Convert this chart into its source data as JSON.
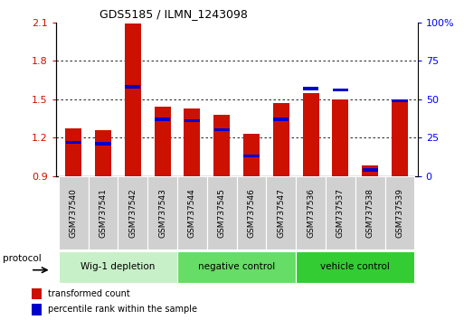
{
  "title": "GDS5185 / ILMN_1243098",
  "samples": [
    "GSM737540",
    "GSM737541",
    "GSM737542",
    "GSM737543",
    "GSM737544",
    "GSM737545",
    "GSM737546",
    "GSM737547",
    "GSM737536",
    "GSM737537",
    "GSM737538",
    "GSM737539"
  ],
  "red_values": [
    1.27,
    1.26,
    2.09,
    1.44,
    1.43,
    1.38,
    1.23,
    1.47,
    1.55,
    1.5,
    0.98,
    1.48
  ],
  "blue_pct": [
    22,
    21,
    58,
    37,
    36,
    30,
    13,
    37,
    57,
    56,
    4,
    49
  ],
  "ylim_left": [
    0.9,
    2.1
  ],
  "ylim_right": [
    0,
    100
  ],
  "yticks_left": [
    0.9,
    1.2,
    1.5,
    1.8,
    2.1
  ],
  "yticks_right": [
    0,
    25,
    50,
    75,
    100
  ],
  "ytick_labels_right": [
    "0",
    "25",
    "50",
    "75",
    "100%"
  ],
  "groups": [
    {
      "label": "Wig-1 depletion",
      "indices": [
        0,
        1,
        2,
        3
      ],
      "color": "#c8f0c8"
    },
    {
      "label": "negative control",
      "indices": [
        4,
        5,
        6,
        7
      ],
      "color": "#66dd66"
    },
    {
      "label": "vehicle control",
      "indices": [
        8,
        9,
        10,
        11
      ],
      "color": "#33cc33"
    }
  ],
  "bar_width": 0.55,
  "red_color": "#cc1100",
  "blue_color": "#0000cc",
  "base_value": 0.9,
  "legend_red": "transformed count",
  "legend_blue": "percentile rank within the sample",
  "protocol_label": "protocol",
  "background_color": "#ffffff"
}
